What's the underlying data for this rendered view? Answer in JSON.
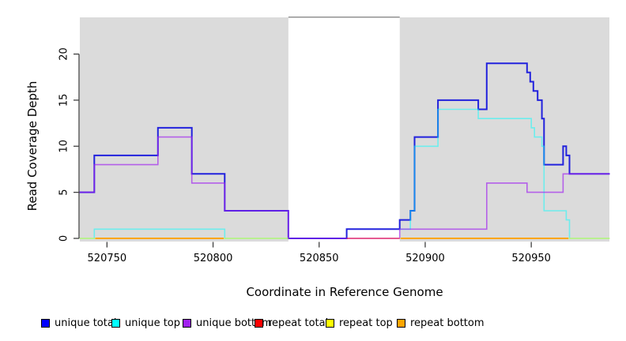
{
  "chart_data": {
    "type": "line",
    "subtype": "step-coverage",
    "title": "",
    "xlabel": "Coordinate in Reference Genome",
    "ylabel": "Read Coverage Depth",
    "xlim": [
      520737,
      520987
    ],
    "ylim": [
      0,
      24
    ],
    "x_ticks": [
      520750,
      520800,
      520850,
      520900,
      520950
    ],
    "y_ticks": [
      0,
      5,
      10,
      15,
      20
    ],
    "grid": false,
    "legend_position": "bottom",
    "background": {
      "plot_fill": "#DBDBDB",
      "masked_gap_region": [
        520835.5,
        520888
      ],
      "gap_fill": "#FFFFFF",
      "gap_top_border": "#8A8A8A"
    },
    "series": [
      {
        "name": "unique total",
        "color": "#2222DD",
        "opacity": 1,
        "width": 2,
        "segments": [
          [
            [
              520737,
              5
            ],
            [
              520744,
              9
            ],
            [
              520774,
              12
            ],
            [
              520790,
              7
            ],
            [
              520805.5,
              3
            ],
            [
              520835.5,
              0
            ],
            [
              520863,
              1
            ],
            [
              520888,
              2
            ],
            [
              520893,
              3
            ],
            [
              520895,
              11
            ],
            [
              520906,
              15
            ],
            [
              520925,
              14
            ],
            [
              520929,
              19
            ],
            [
              520948,
              18
            ],
            [
              520949.5,
              17
            ],
            [
              520951,
              16
            ],
            [
              520953,
              15
            ],
            [
              520955,
              13
            ],
            [
              520956,
              8
            ],
            [
              520965,
              10
            ],
            [
              520966.5,
              9
            ],
            [
              520968,
              7
            ],
            [
              520987,
              7
            ]
          ]
        ]
      },
      {
        "name": "unique top",
        "color": "#00FFFF",
        "opacity": 0.5,
        "width": 1.6,
        "segments": [
          [
            [
              520737,
              0
            ],
            [
              520744,
              1
            ],
            [
              520805.5,
              0
            ],
            [
              520835.5,
              0
            ]
          ],
          [
            [
              520888,
              1
            ],
            [
              520893,
              3
            ],
            [
              520895,
              10
            ],
            [
              520906,
              14
            ],
            [
              520925,
              13
            ],
            [
              520950,
              12
            ],
            [
              520951.5,
              11
            ],
            [
              520955,
              10
            ],
            [
              520956,
              3
            ],
            [
              520966.5,
              2
            ],
            [
              520968,
              0
            ],
            [
              520987,
              0
            ]
          ]
        ]
      },
      {
        "name": "unique bottom",
        "color": "#A020F0",
        "opacity": 0.66,
        "width": 1.6,
        "segments": [
          [
            [
              520737,
              5
            ],
            [
              520744,
              8
            ],
            [
              520774,
              11
            ],
            [
              520790,
              6
            ],
            [
              520805.5,
              3
            ],
            [
              520835.5,
              0
            ],
            [
              520888,
              1
            ],
            [
              520929,
              6
            ],
            [
              520948,
              5
            ],
            [
              520965,
              7
            ],
            [
              520987,
              7
            ]
          ]
        ]
      },
      {
        "name": "repeat total",
        "color": "#FF0000",
        "opacity": 0.55,
        "width": 1.6,
        "segments": [
          [
            [
              520863,
              0
            ],
            [
              520888,
              0
            ]
          ]
        ]
      },
      {
        "name": "repeat top",
        "color": "#FFFF00",
        "opacity": 0.5,
        "width": 1.6,
        "segments": [
          [
            [
              520737,
              0
            ],
            [
              520835.5,
              0
            ]
          ],
          [
            [
              520888,
              0
            ],
            [
              520987,
              0
            ]
          ]
        ]
      },
      {
        "name": "repeat bottom",
        "color": "#FFA500",
        "opacity": 1,
        "width": 2,
        "segments": [
          [
            [
              520744.5,
              0
            ],
            [
              520805,
              0
            ]
          ],
          [
            [
              520888.5,
              0
            ],
            [
              520967.5,
              0
            ]
          ]
        ]
      }
    ],
    "legend": [
      {
        "label": "unique total",
        "color": "#0000FF"
      },
      {
        "label": "unique top",
        "color": "#00FFFF"
      },
      {
        "label": "unique bottom",
        "color": "#A020F0"
      },
      {
        "label": "repeat total",
        "color": "#FF0000"
      },
      {
        "label": "repeat top",
        "color": "#FFFF00"
      },
      {
        "label": "repeat bottom",
        "color": "#FFA500"
      }
    ]
  }
}
